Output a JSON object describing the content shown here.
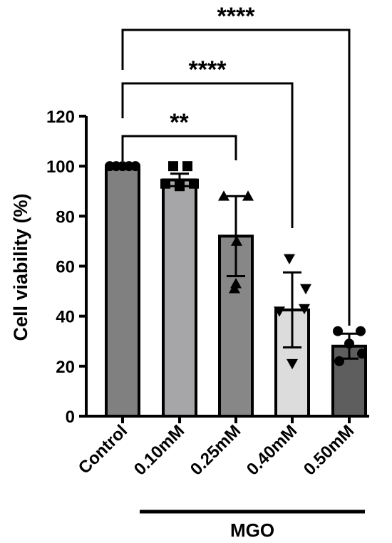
{
  "chart_data": {
    "type": "bar",
    "ylabel": "Cell viability (%)",
    "ylim": [
      0,
      120
    ],
    "yticks": [
      0,
      20,
      40,
      60,
      80,
      100,
      120
    ],
    "categories": [
      "Control",
      "0.10mM",
      "0.25mM",
      "0.40mM",
      "0.50mM"
    ],
    "group_label": "MGO",
    "group_members": [
      "0.10mM",
      "0.25mM",
      "0.40mM",
      "0.50mM"
    ],
    "values": [
      100,
      94.5,
      72,
      42.5,
      28
    ],
    "sd": [
      0,
      2.5,
      16,
      15,
      5
    ],
    "bar_colors": [
      "#808080",
      "#a6a6a8",
      "#878787",
      "#dcdcdc",
      "#5e5e5e"
    ],
    "markers": [
      "circle",
      "square",
      "triangle-up",
      "triangle-down",
      "circle"
    ],
    "points": [
      [
        100,
        100,
        100,
        100,
        100
      ],
      [
        100,
        100,
        93,
        93,
        92
      ],
      [
        88,
        88,
        70,
        53,
        51
      ],
      [
        63,
        51,
        43,
        42,
        21
      ],
      [
        34,
        34,
        29,
        25,
        22
      ]
    ],
    "significance": [
      {
        "from": "Control",
        "to": "0.25mM",
        "label": "**"
      },
      {
        "from": "Control",
        "to": "0.40mM",
        "label": "****"
      },
      {
        "from": "Control",
        "to": "0.50mM",
        "label": "****"
      }
    ],
    "grid": false,
    "legend": "none"
  }
}
